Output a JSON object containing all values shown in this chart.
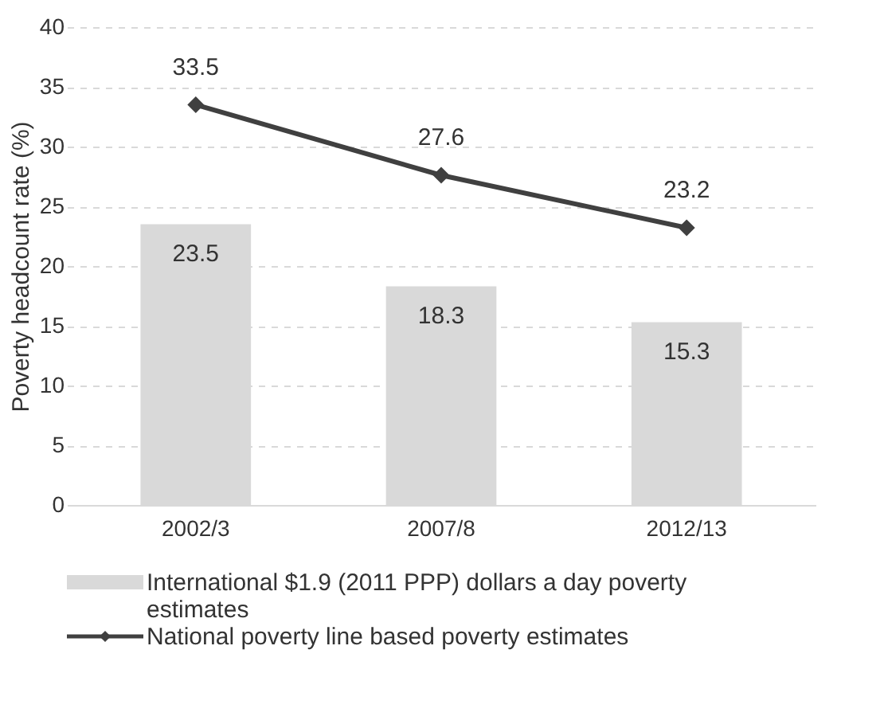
{
  "chart_data": {
    "type": "bar",
    "ylabel": "Poverty headcount rate (%)",
    "categories": [
      "2002/3",
      "2007/8",
      "2012/13"
    ],
    "series": [
      {
        "name": "International $1.9 (2011 PPP) dollars a day poverty estimates",
        "color": "#d9d9d9",
        "values": [
          23.5,
          18.3,
          15.3
        ]
      },
      {
        "name": "National poverty line based poverty estimates",
        "type": "line",
        "color": "#404040",
        "marker": "diamond",
        "values": [
          33.5,
          27.6,
          23.2
        ]
      }
    ],
    "ylim": [
      0,
      40
    ],
    "yticks": [
      0,
      5,
      10,
      15,
      20,
      25,
      30,
      35,
      40
    ],
    "grid": "y",
    "data_labels": true,
    "legend": "bottom"
  }
}
